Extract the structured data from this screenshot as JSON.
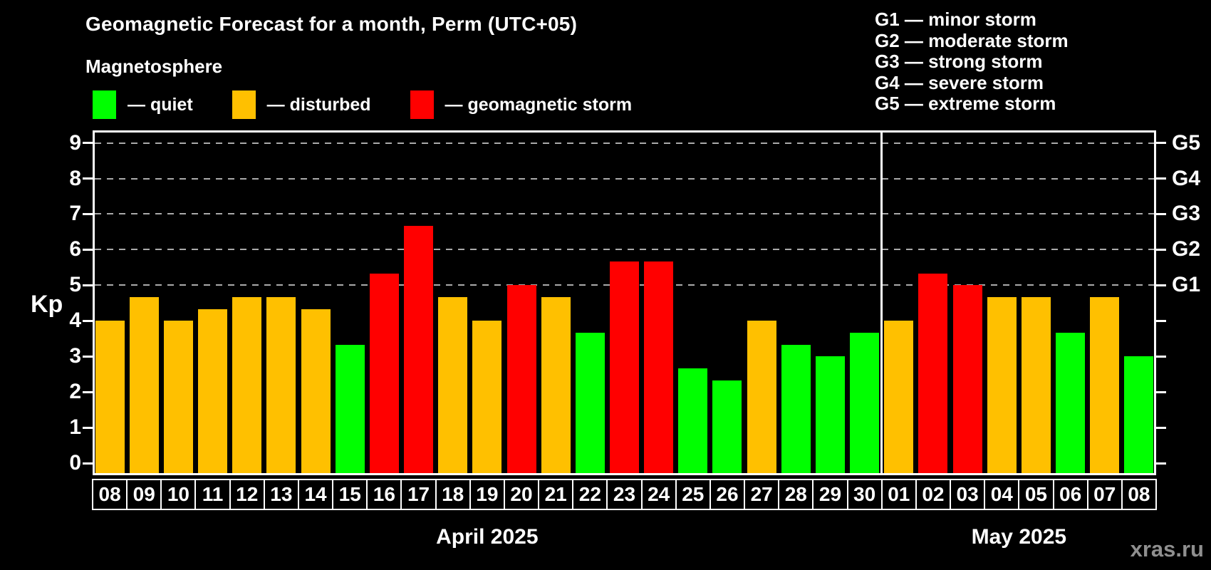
{
  "header": {
    "title": "Geomagnetic Forecast for a month, Perm (UTC+05)",
    "subtitle": "Magnetosphere"
  },
  "legend": {
    "items": [
      {
        "name": "quiet",
        "label": "— quiet",
        "color": "#00ff00"
      },
      {
        "name": "disturbed",
        "label": "— disturbed",
        "color": "#ffc000"
      },
      {
        "name": "storm",
        "label": "— geomagnetic storm",
        "color": "#ff0000"
      }
    ]
  },
  "g_legend": {
    "lines": [
      "G1 — minor storm",
      "G2 — moderate storm",
      "G3 — strong storm",
      "G4 — severe storm",
      "G5 — extreme storm"
    ]
  },
  "axis": {
    "kp_title": "Kp",
    "kp_ticks": [
      0,
      1,
      2,
      3,
      4,
      5,
      6,
      7,
      8,
      9
    ],
    "g_labels": [
      {
        "kp": 5,
        "label": "G1"
      },
      {
        "kp": 6,
        "label": "G2"
      },
      {
        "kp": 7,
        "label": "G3"
      },
      {
        "kp": 8,
        "label": "G4"
      },
      {
        "kp": 9,
        "label": "G5"
      }
    ]
  },
  "months": [
    {
      "label": "April 2025",
      "num_days": 23
    },
    {
      "label": "May 2025",
      "num_days": 8
    }
  ],
  "watermark": "xras.ru",
  "chart_data": {
    "type": "bar",
    "title": "Geomagnetic Forecast for a month, Perm (UTC+05)",
    "subtitle": "Magnetosphere",
    "ylabel": "Kp",
    "ylim": [
      0,
      9
    ],
    "grid_kp_levels": [
      5,
      6,
      7,
      8,
      9
    ],
    "legend_position": "top-left",
    "status_colors": {
      "quiet": "#00ff00",
      "disturbed": "#ffc000",
      "storm": "#ff0000"
    },
    "days": [
      {
        "month": "April 2025",
        "day": "08",
        "kp": 4.0,
        "status": "disturbed"
      },
      {
        "month": "April 2025",
        "day": "09",
        "kp": 4.67,
        "status": "disturbed"
      },
      {
        "month": "April 2025",
        "day": "10",
        "kp": 4.0,
        "status": "disturbed"
      },
      {
        "month": "April 2025",
        "day": "11",
        "kp": 4.33,
        "status": "disturbed"
      },
      {
        "month": "April 2025",
        "day": "12",
        "kp": 4.67,
        "status": "disturbed"
      },
      {
        "month": "April 2025",
        "day": "13",
        "kp": 4.67,
        "status": "disturbed"
      },
      {
        "month": "April 2025",
        "day": "14",
        "kp": 4.33,
        "status": "disturbed"
      },
      {
        "month": "April 2025",
        "day": "15",
        "kp": 3.33,
        "status": "quiet"
      },
      {
        "month": "April 2025",
        "day": "16",
        "kp": 5.33,
        "status": "storm"
      },
      {
        "month": "April 2025",
        "day": "17",
        "kp": 6.67,
        "status": "storm"
      },
      {
        "month": "April 2025",
        "day": "18",
        "kp": 4.67,
        "status": "disturbed"
      },
      {
        "month": "April 2025",
        "day": "19",
        "kp": 4.0,
        "status": "disturbed"
      },
      {
        "month": "April 2025",
        "day": "20",
        "kp": 5.0,
        "status": "storm"
      },
      {
        "month": "April 2025",
        "day": "21",
        "kp": 4.67,
        "status": "disturbed"
      },
      {
        "month": "April 2025",
        "day": "22",
        "kp": 3.67,
        "status": "quiet"
      },
      {
        "month": "April 2025",
        "day": "23",
        "kp": 5.67,
        "status": "storm"
      },
      {
        "month": "April 2025",
        "day": "24",
        "kp": 5.67,
        "status": "storm"
      },
      {
        "month": "April 2025",
        "day": "25",
        "kp": 2.67,
        "status": "quiet"
      },
      {
        "month": "April 2025",
        "day": "26",
        "kp": 2.33,
        "status": "quiet"
      },
      {
        "month": "April 2025",
        "day": "27",
        "kp": 4.0,
        "status": "disturbed"
      },
      {
        "month": "April 2025",
        "day": "28",
        "kp": 3.33,
        "status": "quiet"
      },
      {
        "month": "April 2025",
        "day": "29",
        "kp": 3.0,
        "status": "quiet"
      },
      {
        "month": "April 2025",
        "day": "30",
        "kp": 3.67,
        "status": "quiet"
      },
      {
        "month": "May 2025",
        "day": "01",
        "kp": 4.0,
        "status": "disturbed"
      },
      {
        "month": "May 2025",
        "day": "02",
        "kp": 5.33,
        "status": "storm"
      },
      {
        "month": "May 2025",
        "day": "03",
        "kp": 5.0,
        "status": "storm"
      },
      {
        "month": "May 2025",
        "day": "04",
        "kp": 4.67,
        "status": "disturbed"
      },
      {
        "month": "May 2025",
        "day": "05",
        "kp": 4.67,
        "status": "disturbed"
      },
      {
        "month": "May 2025",
        "day": "06",
        "kp": 3.67,
        "status": "quiet"
      },
      {
        "month": "May 2025",
        "day": "07",
        "kp": 4.67,
        "status": "disturbed"
      },
      {
        "month": "May 2025",
        "day": "08",
        "kp": 3.0,
        "status": "quiet"
      }
    ]
  }
}
